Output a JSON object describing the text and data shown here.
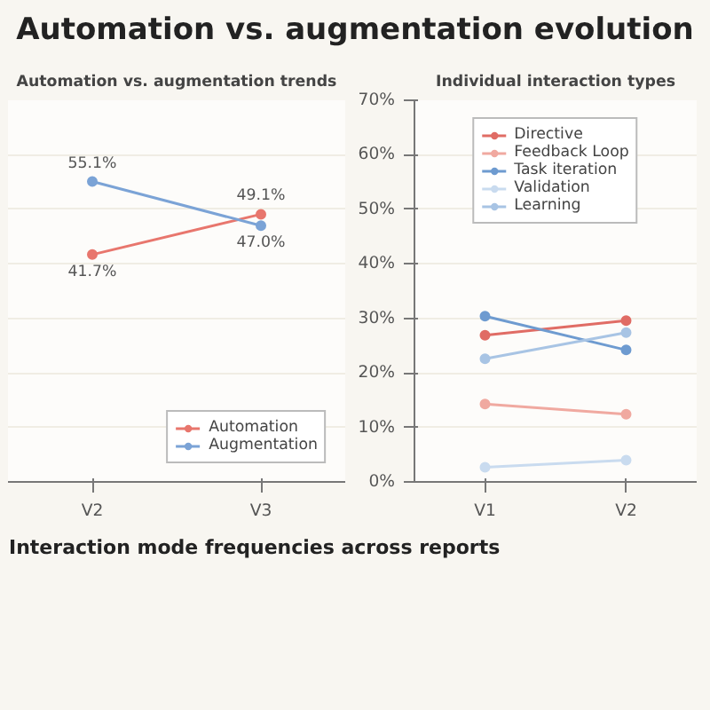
{
  "chart_data": [
    {
      "type": "line",
      "title": "Automation vs. augmentation evolution",
      "subtitle": "Automation vs. augmentation trends",
      "categories": [
        "V2",
        "V3"
      ],
      "series": [
        {
          "name": "Automation",
          "color": "#e8766d",
          "values": [
            41.7,
            49.1
          ],
          "value_labels": [
            "41.7%",
            "49.1%"
          ]
        },
        {
          "name": "Augmentation",
          "color": "#7ba3d6",
          "values": [
            55.1,
            47.0
          ],
          "value_labels": [
            "55.1%",
            "47.0%"
          ]
        }
      ],
      "ylim": [
        0,
        70
      ],
      "yticks": [
        0,
        10,
        20,
        30,
        40,
        50,
        60,
        70
      ],
      "tick_labels": "x",
      "grid": "y",
      "legend": "bottom right",
      "marker": "circle",
      "line_style": "solid",
      "annotations": [
        "Interaction mode frequencies across reports"
      ]
    },
    {
      "type": "line",
      "subtitle": "Individual interaction types",
      "categories": [
        "V1",
        "V2"
      ],
      "series": [
        {
          "name": "Directive",
          "color": "#e06c65",
          "values": [
            26.9,
            29.6
          ]
        },
        {
          "name": "Feedback Loop",
          "color": "#f0a9a0",
          "values": [
            14.3,
            12.4
          ]
        },
        {
          "name": "Task iteration",
          "color": "#6e9bd0",
          "values": [
            30.4,
            24.2
          ]
        },
        {
          "name": "Validation",
          "color": "#c9dbef",
          "values": [
            2.7,
            4.0
          ]
        },
        {
          "name": "Learning",
          "color": "#a8c4e4",
          "values": [
            22.6,
            27.4
          ]
        }
      ],
      "ylim": [
        0,
        70
      ],
      "yticks": [
        {
          "value": 0,
          "label": "0%"
        },
        {
          "value": 10,
          "label": "10%"
        },
        {
          "value": 20,
          "label": "20%"
        },
        {
          "value": 30,
          "label": "30%"
        },
        {
          "value": 40,
          "label": "40%"
        },
        {
          "value": 50,
          "label": "50%"
        },
        {
          "value": 60,
          "label": "60%"
        },
        {
          "value": 70,
          "label": "70%"
        }
      ],
      "grid": "y",
      "legend": "top",
      "marker": "circle",
      "line_style": "solid"
    }
  ]
}
